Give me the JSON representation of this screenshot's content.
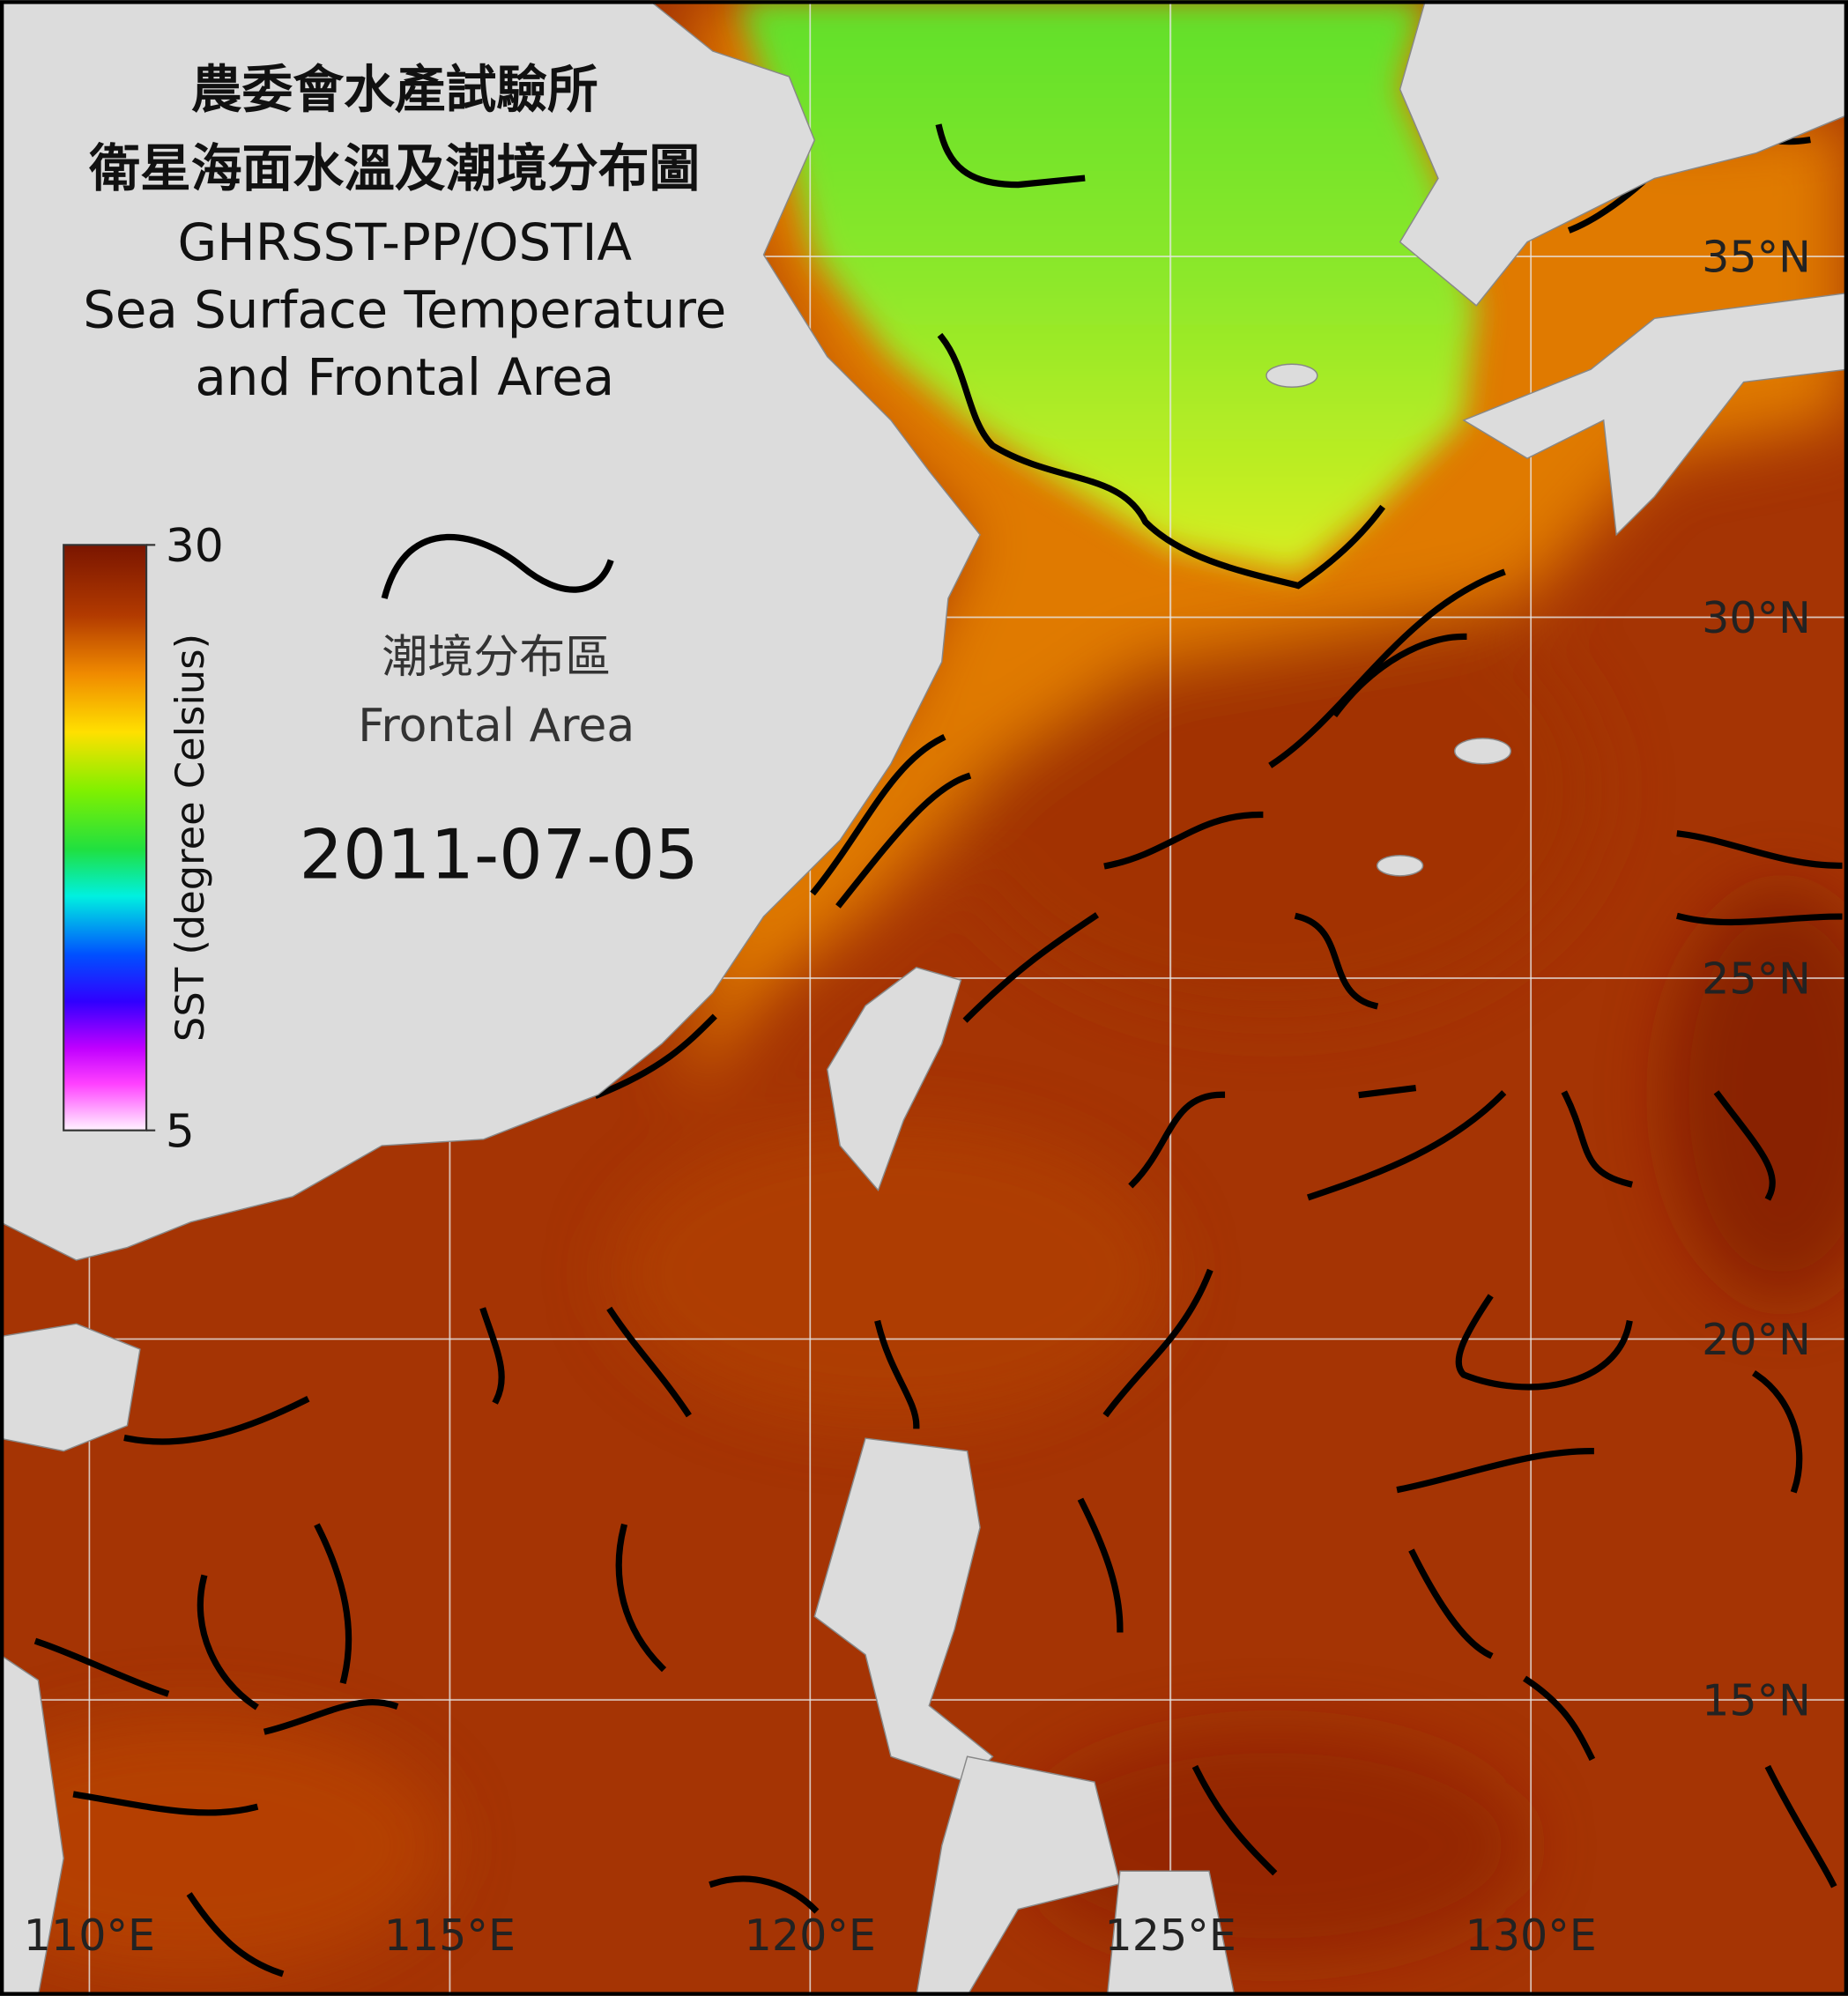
{
  "header": {
    "title_lines": [
      "農委會水產試驗所",
      "衛星海面水溫及潮境分布圖",
      "GHRSST-PP/OSTIA",
      "Sea Surface Temperature",
      "and Frontal Area"
    ],
    "date": "2011-07-05"
  },
  "legend": {
    "label_zh": "潮境分布區",
    "label_en": "Frontal Area"
  },
  "colorbar": {
    "label": "SST (degree Celsius)",
    "range": [
      5,
      30
    ],
    "ticks": [
      5,
      30
    ]
  },
  "map": {
    "lon_range": [
      108.76,
      134.4
    ],
    "lat_range": [
      10.9,
      38.55
    ],
    "lon_ticks": [
      {
        "value": 110,
        "label": "110°E"
      },
      {
        "value": 115,
        "label": "115°E"
      },
      {
        "value": 120,
        "label": "120°E"
      },
      {
        "value": 125,
        "label": "125°E"
      },
      {
        "value": 130,
        "label": "130°E"
      }
    ],
    "lat_ticks": [
      {
        "value": 15,
        "label": "15°N"
      },
      {
        "value": 20,
        "label": "20°N"
      },
      {
        "value": 25,
        "label": "25°N"
      },
      {
        "value": 30,
        "label": "30°N"
      },
      {
        "value": 35,
        "label": "35°N"
      }
    ]
  }
}
